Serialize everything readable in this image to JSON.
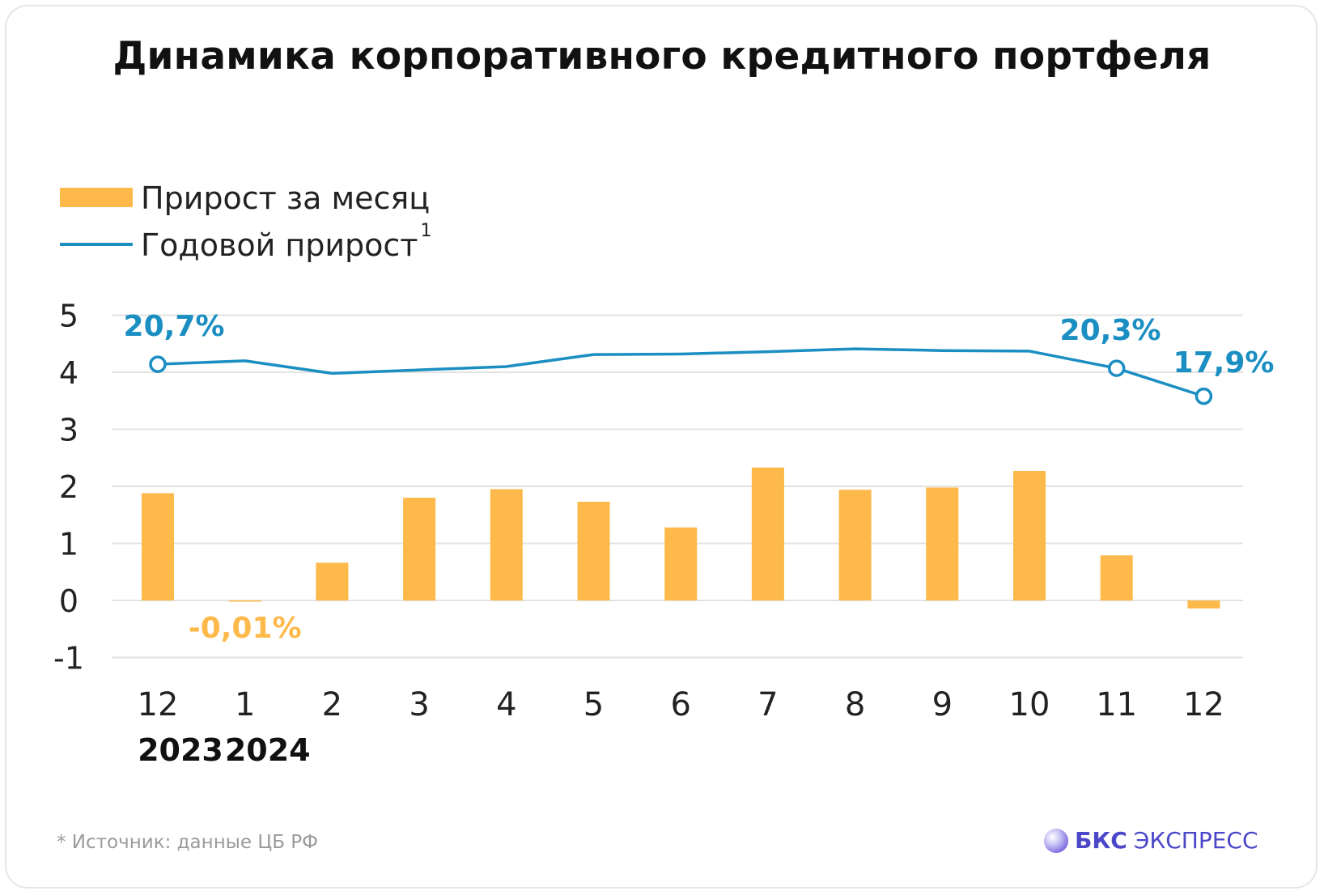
{
  "title": "Динамика корпоративного кредитного портфеля",
  "footnote": "* Источник: данные ЦБ РФ",
  "brand": {
    "strong": "БКС",
    "rest": "ЭКСПРЕСС",
    "logo_icon": "bcs-sphere-icon"
  },
  "colors": {
    "bar": "#FDB94A",
    "line": "#1B8EC2",
    "grid": "#e3e3e3",
    "neg_label": "#FDB94A"
  },
  "chart_data": {
    "type": "bar",
    "categories": [
      "12",
      "1",
      "2",
      "3",
      "4",
      "5",
      "6",
      "7",
      "8",
      "9",
      "10",
      "11",
      "12"
    ],
    "year_labels": [
      {
        "text": "2023",
        "category_index": 0
      },
      {
        "text": "2024",
        "category_index": 1
      }
    ],
    "ylim": [
      -1,
      5
    ],
    "yticks": [
      "5",
      "4",
      "3",
      "2",
      "1",
      "0",
      "-1"
    ],
    "grid": true,
    "legend": {
      "placement": "top-left",
      "items": [
        {
          "name": "Прирост за месяц",
          "kind": "bar"
        },
        {
          "name": "Годовой прирост",
          "sup": "1",
          "kind": "line"
        }
      ]
    },
    "series": [
      {
        "name": "Прирост за месяц",
        "kind": "bar",
        "values": [
          1.88,
          -0.01,
          0.66,
          1.8,
          1.95,
          1.73,
          1.28,
          2.33,
          1.94,
          1.98,
          2.27,
          0.79,
          -0.14
        ],
        "labels": [
          {
            "index": 1,
            "text": "-0,01%"
          }
        ]
      },
      {
        "name": "Годовой прирост",
        "kind": "line",
        "values": [
          4.14,
          4.2,
          3.98,
          4.04,
          4.1,
          4.31,
          4.32,
          4.36,
          4.41,
          4.38,
          4.37,
          4.07,
          3.58
        ],
        "labels": [
          {
            "index": 0,
            "text": "20,7%"
          },
          {
            "index": 11,
            "text": "20,3%"
          },
          {
            "index": 12,
            "text": "17,9%"
          }
        ],
        "markers": [
          0,
          11,
          12
        ]
      }
    ]
  }
}
